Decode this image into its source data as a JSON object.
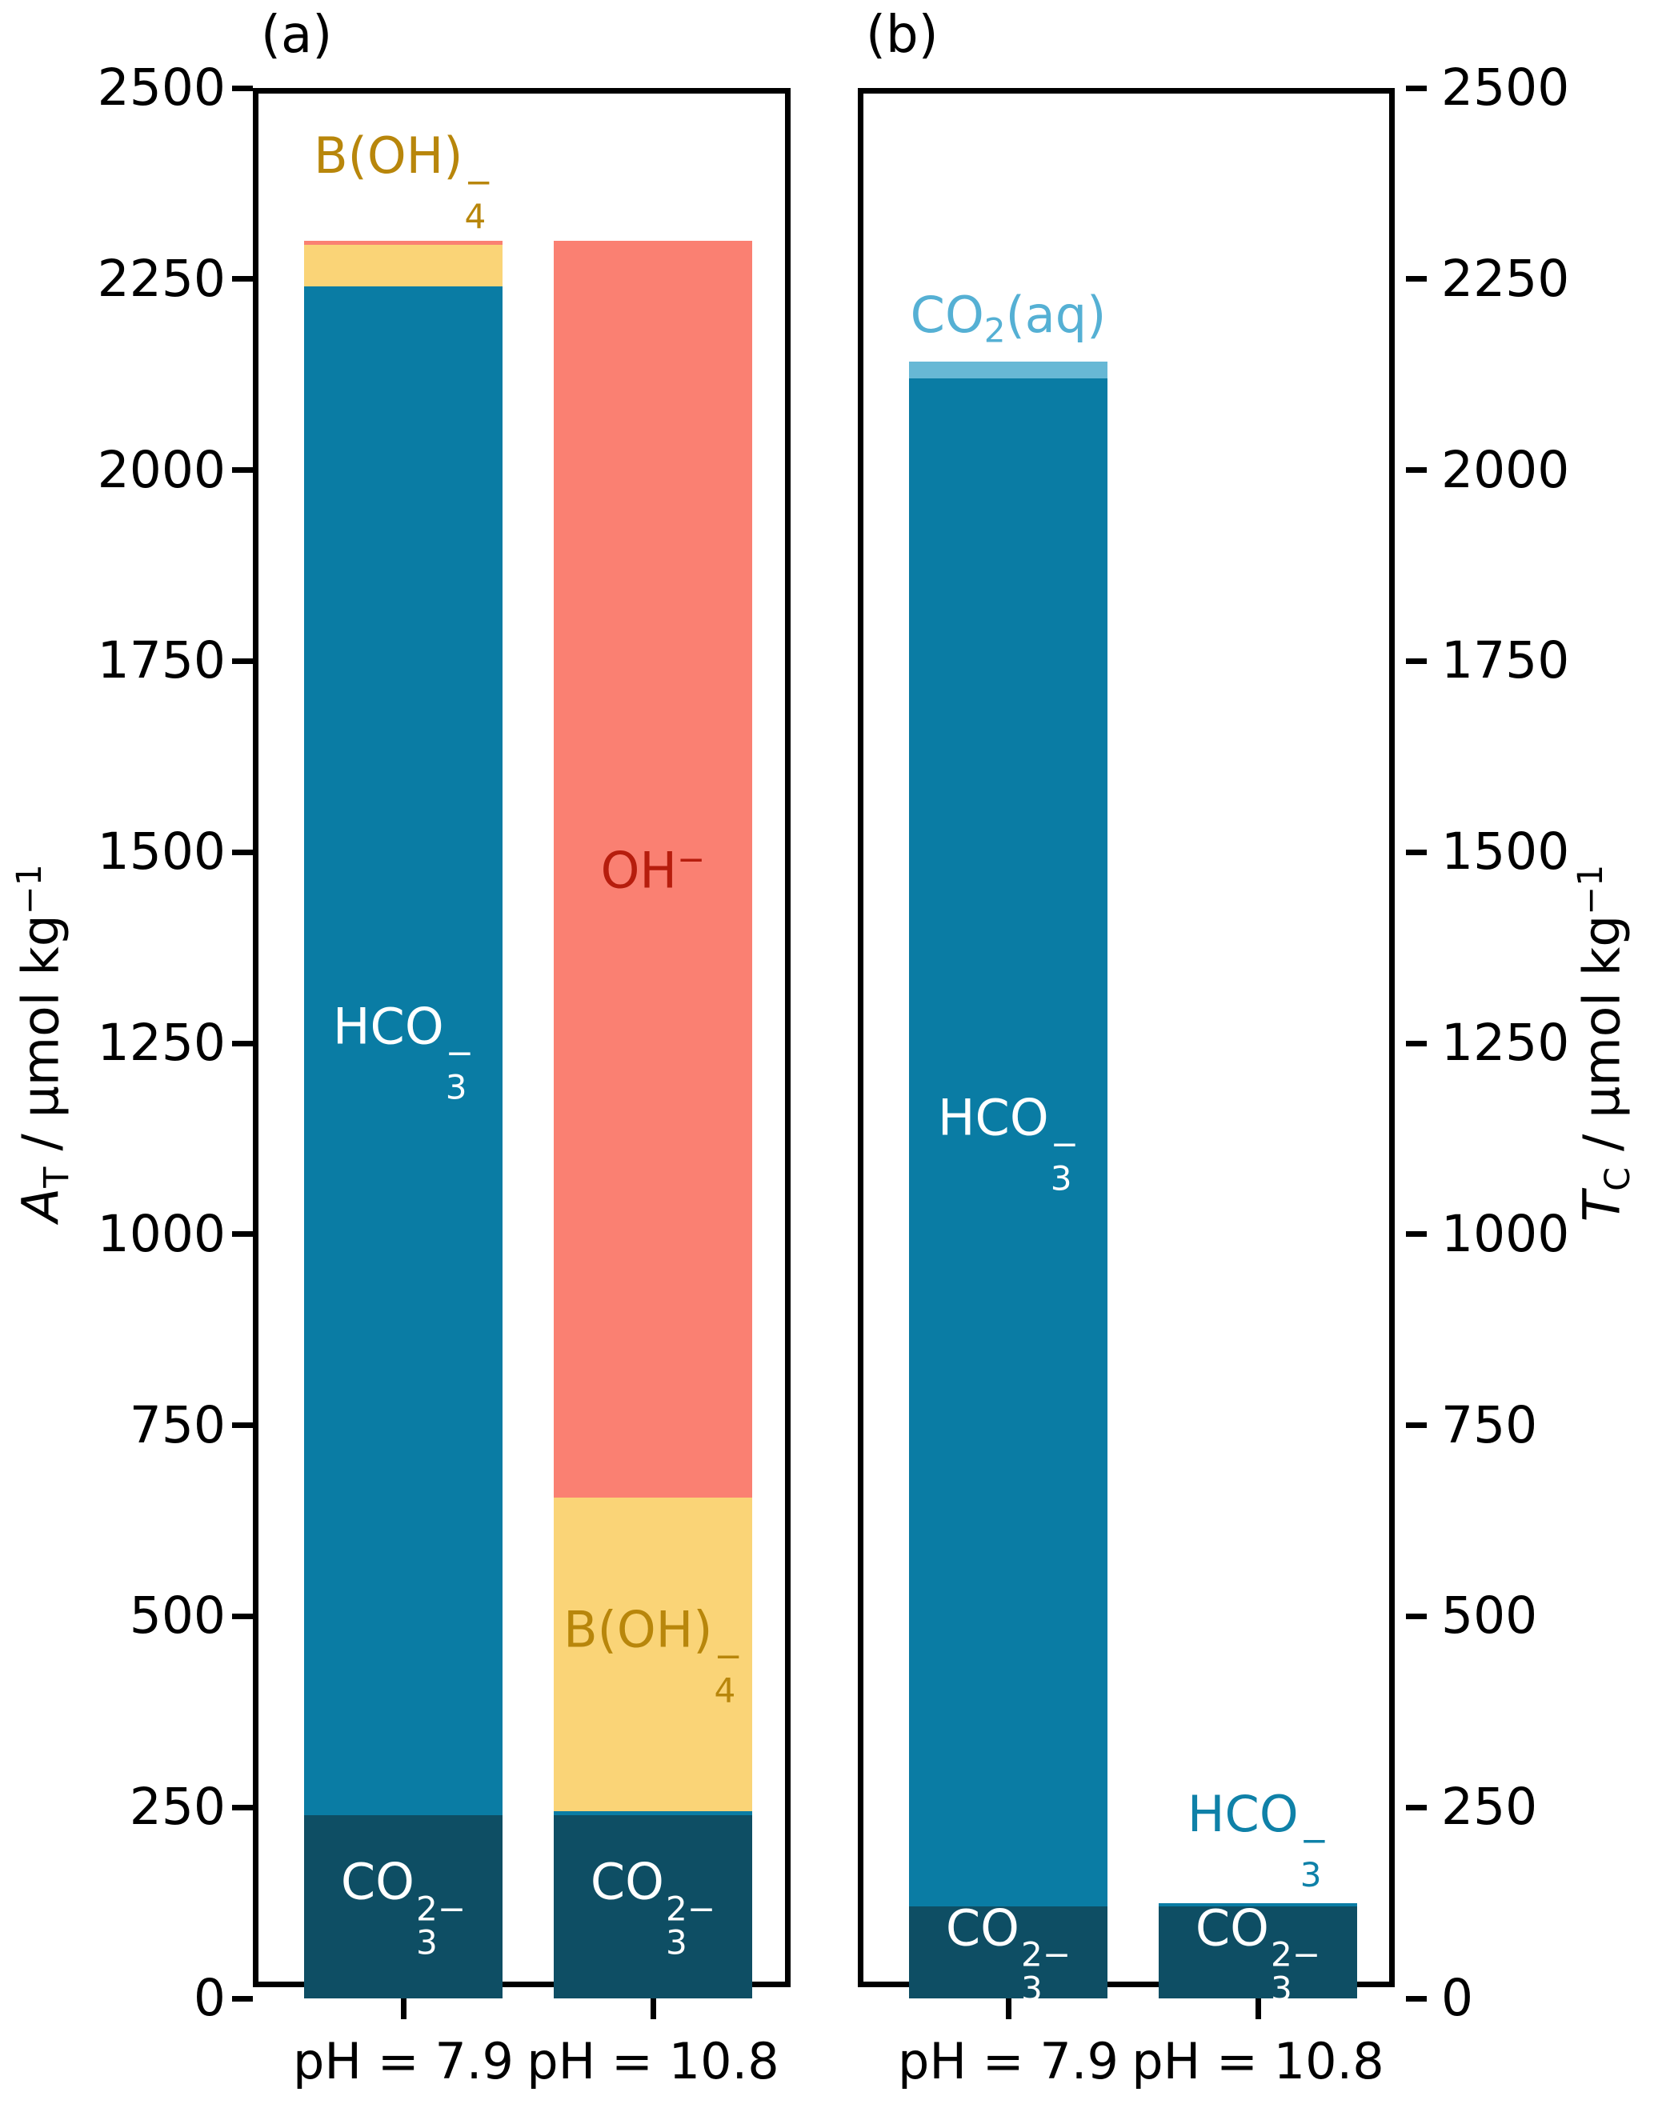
{
  "chart_data": [
    {
      "type": "bar",
      "stacked": true,
      "title": "(a)",
      "ylabel": {
        "parts": [
          {
            "t": "i",
            "v": "A"
          },
          {
            "t": "sub",
            "v": "T"
          },
          {
            "t": "text",
            "v": " / µmol kg"
          },
          {
            "t": "sup",
            "v": "−1"
          }
        ]
      },
      "ylim": [
        0,
        2500
      ],
      "yticks": [
        0,
        250,
        500,
        750,
        1000,
        1250,
        1500,
        1750,
        2000,
        2250,
        2500
      ],
      "yticks_side": "left",
      "grid": false,
      "legend": "none",
      "categories": [
        "pH = 7.9",
        "pH = 10.8"
      ],
      "series": [
        {
          "name": "carbonate",
          "parts": [
            {
              "t": "text",
              "v": "CO"
            },
            {
              "t": "stack",
              "sup": "2−",
              "sub": "3"
            }
          ],
          "color": "#0e4e64",
          "values": [
            240,
            240
          ]
        },
        {
          "name": "bicarbonate",
          "parts": [
            {
              "t": "text",
              "v": "HCO"
            },
            {
              "t": "stack",
              "sup": "−",
              "sub": "3"
            }
          ],
          "color": "#0a7ca4",
          "values": [
            2000,
            5
          ]
        },
        {
          "name": "borate",
          "parts": [
            {
              "t": "text",
              "v": "B(OH)"
            },
            {
              "t": "stack",
              "sup": "−",
              "sub": "4"
            }
          ],
          "color": "#fad477",
          "values": [
            55,
            410
          ]
        },
        {
          "name": "hydroxide",
          "parts": [
            {
              "t": "text",
              "v": "OH"
            },
            {
              "t": "sup",
              "v": "−"
            }
          ],
          "color": "#fa8072",
          "values": [
            5,
            1645
          ]
        }
      ],
      "labels": [
        {
          "bar": 0,
          "series": 0,
          "placement": "inside",
          "color": "#ffffff"
        },
        {
          "bar": 0,
          "series": 1,
          "placement": "inside",
          "color": "#ffffff"
        },
        {
          "bar": 0,
          "series": 2,
          "placement": "above",
          "color": "#b8860b"
        },
        {
          "bar": 1,
          "series": 0,
          "placement": "inside",
          "color": "#ffffff"
        },
        {
          "bar": 1,
          "series": 2,
          "placement": "inside",
          "color": "#b8860b"
        },
        {
          "bar": 1,
          "series": 3,
          "placement": "inside",
          "color": "#b61d0d"
        }
      ]
    },
    {
      "type": "bar",
      "stacked": true,
      "title": "(b)",
      "ylabel": {
        "parts": [
          {
            "t": "i",
            "v": "T"
          },
          {
            "t": "sub",
            "v": "C"
          },
          {
            "t": "text",
            "v": " / µmol kg"
          },
          {
            "t": "sup",
            "v": "−1"
          }
        ]
      },
      "ylim": [
        0,
        2500
      ],
      "yticks": [
        0,
        250,
        500,
        750,
        1000,
        1250,
        1500,
        1750,
        2000,
        2250,
        2500
      ],
      "yticks_side": "right",
      "grid": false,
      "legend": "none",
      "categories": [
        "pH = 7.9",
        "pH = 10.8"
      ],
      "series": [
        {
          "name": "carbonate",
          "parts": [
            {
              "t": "text",
              "v": "CO"
            },
            {
              "t": "stack",
              "sup": "2−",
              "sub": "3"
            }
          ],
          "color": "#0e4e64",
          "values": [
            120,
            120
          ]
        },
        {
          "name": "bicarbonate",
          "parts": [
            {
              "t": "text",
              "v": "HCO"
            },
            {
              "t": "stack",
              "sup": "−",
              "sub": "3"
            }
          ],
          "color": "#0a7ca4",
          "values": [
            2000,
            5
          ]
        },
        {
          "name": "co2-aqueous",
          "parts": [
            {
              "t": "text",
              "v": "CO"
            },
            {
              "t": "sub",
              "v": "2"
            },
            {
              "t": "text",
              "v": "(aq)"
            }
          ],
          "color": "#67b8d5",
          "values": [
            22,
            0
          ]
        }
      ],
      "labels": [
        {
          "bar": 0,
          "series": 0,
          "placement": "inside",
          "color": "#ffffff"
        },
        {
          "bar": 0,
          "series": 1,
          "placement": "inside",
          "color": "#ffffff"
        },
        {
          "bar": 0,
          "series": 2,
          "placement": "above",
          "color": "#55b0d4"
        },
        {
          "bar": 1,
          "series": 0,
          "placement": "inside",
          "color": "#ffffff"
        },
        {
          "bar": 1,
          "series": 1,
          "placement": "above",
          "color": "#0f81a8"
        }
      ]
    }
  ]
}
